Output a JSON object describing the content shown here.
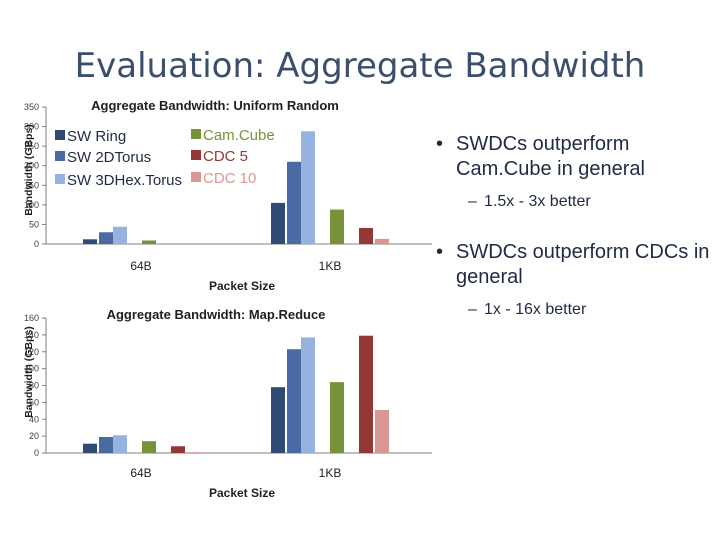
{
  "slide": {
    "title": "Evaluation: Aggregate Bandwidth",
    "bullets": [
      {
        "text": "SWDCs outperform Cam.Cube in general",
        "sub": "1.5x - 3x better"
      },
      {
        "text": "SWDCs outperform CDCs in general",
        "sub": "1x - 16x better"
      }
    ]
  },
  "legend": [
    {
      "name": "SW Ring",
      "color": "#2f4a73"
    },
    {
      "name": "SW 2DTorus",
      "color": "#4a6aa4"
    },
    {
      "name": "SW 3DHex.Torus",
      "color": "#96b3e0"
    },
    {
      "name": "Cam.Cube",
      "color": "#76933c"
    },
    {
      "name": "CDC 5",
      "color": "#953735"
    },
    {
      "name": "CDC 10",
      "color": "#d99694"
    }
  ],
  "chart_data": [
    {
      "type": "bar",
      "title": "Aggregate Bandwidth: Uniform Random",
      "xlabel": "Packet Size",
      "ylabel": "Bandwidth (GBps)",
      "ylim": [
        0,
        350
      ],
      "yticks": [
        0,
        50,
        100,
        150,
        200,
        250,
        300,
        350
      ],
      "categories": [
        "64B",
        "1KB"
      ],
      "series": [
        {
          "name": "SW Ring",
          "values": [
            12,
            105
          ]
        },
        {
          "name": "SW 2DTorus",
          "values": [
            30,
            210
          ]
        },
        {
          "name": "SW 3DHex.Torus",
          "values": [
            44,
            288
          ]
        },
        {
          "name": "Cam.Cube",
          "values": [
            9,
            88
          ]
        },
        {
          "name": "CDC 5",
          "values": [
            0,
            41
          ]
        },
        {
          "name": "CDC 10",
          "values": [
            0,
            13
          ]
        }
      ],
      "legend_position": "top-left"
    },
    {
      "type": "bar",
      "title": "Aggregate Bandwidth: Map.Reduce",
      "xlabel": "Packet Size",
      "ylabel": "Bandwidth (GBps)",
      "ylim": [
        0,
        160
      ],
      "yticks": [
        0,
        20,
        40,
        60,
        80,
        100,
        120,
        140,
        160
      ],
      "categories": [
        "64B",
        "1KB"
      ],
      "series": [
        {
          "name": "SW Ring",
          "values": [
            11,
            78
          ]
        },
        {
          "name": "SW 2DTorus",
          "values": [
            19,
            123
          ]
        },
        {
          "name": "SW 3DHex.Torus",
          "values": [
            21,
            137
          ]
        },
        {
          "name": "Cam.Cube",
          "values": [
            14,
            84
          ]
        },
        {
          "name": "CDC 5",
          "values": [
            8,
            139
          ]
        },
        {
          "name": "CDC 10",
          "values": [
            1,
            51
          ]
        }
      ]
    }
  ]
}
